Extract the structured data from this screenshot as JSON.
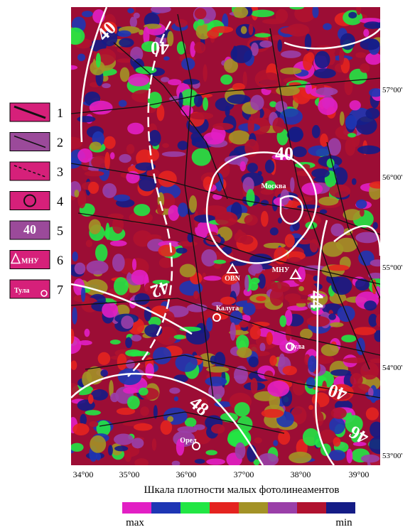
{
  "legend": {
    "items": [
      {
        "number": "1"
      },
      {
        "number": "2"
      },
      {
        "number": "3"
      },
      {
        "number": "4"
      },
      {
        "number": "5",
        "icon_text": "40"
      },
      {
        "number": "6",
        "icon_text": "МНУ"
      },
      {
        "number": "7",
        "icon_text": "Тула"
      }
    ]
  },
  "map": {
    "contour_labels": [
      "40",
      "40",
      "40",
      "42",
      "44",
      "40",
      "46",
      "48"
    ],
    "places": [
      "Москва",
      "OBN",
      "МНУ",
      "Калуга",
      "Тула",
      "Орел"
    ],
    "latitudes": [
      "57°00'",
      "56°00'",
      "55°00'",
      "54°00'",
      "53°00'"
    ],
    "longitudes": [
      "34°00",
      "35°00",
      "36°00",
      "37°00",
      "38°00",
      "39°00"
    ]
  },
  "scale": {
    "title": "Шкала плотности малых фотолинеаментов",
    "min_label": "min",
    "max_label": "max",
    "colors": [
      "#e21fc4",
      "#1e36b4",
      "#22e644",
      "#e4231f",
      "#a39226",
      "#9a3fa8",
      "#b0122f",
      "#141c86"
    ]
  }
}
